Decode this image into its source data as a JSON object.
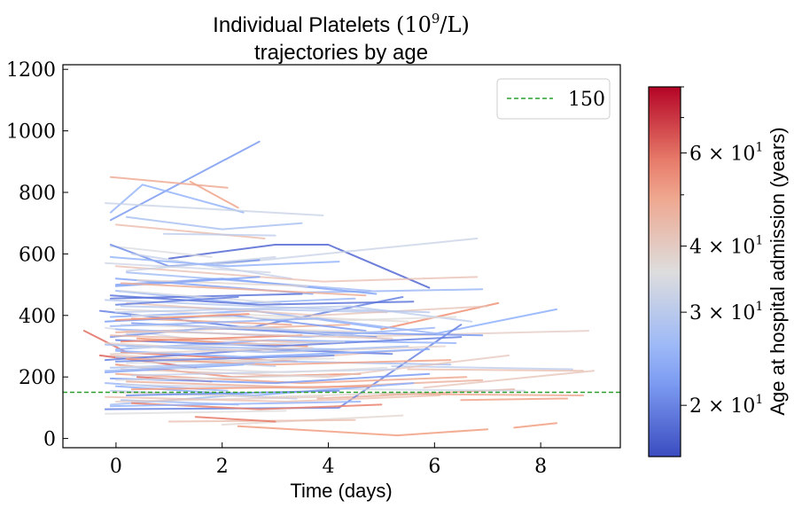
{
  "chart_data": {
    "type": "line",
    "title_line1": "Individual Platelets (10⁹/L)",
    "title_line2": "trajectories by age",
    "title_text": "Individual Platelets",
    "title_unit": "(10",
    "title_exp": "9",
    "title_unit_tail": "/L)",
    "xlabel": "Time (days)",
    "ylabel": "",
    "xlim": [
      -1.0,
      9.5
    ],
    "ylim": [
      -30,
      1215
    ],
    "x_ticks": [
      0,
      2,
      4,
      6,
      8
    ],
    "y_ticks": [
      0,
      200,
      400,
      600,
      800,
      1000,
      1200
    ],
    "reference_line": {
      "value": 150,
      "label": "150",
      "color": "#2ca02c",
      "style": "dashed"
    },
    "legend": {
      "placement": "top-right",
      "entries": [
        "150"
      ]
    },
    "colorbar": {
      "label": "Age at hospital admission (years)",
      "scale": "log",
      "range": [
        16,
        80
      ],
      "ticks": [
        {
          "value": 20,
          "mantissa": "2",
          "base": "10",
          "exp": "1"
        },
        {
          "value": 30,
          "mantissa": "3",
          "base": "10",
          "exp": "1"
        },
        {
          "value": 40,
          "mantissa": "4",
          "base": "10",
          "exp": "1"
        },
        {
          "value": 60,
          "mantissa": "6",
          "base": "10",
          "exp": "1"
        }
      ],
      "colormap": "coolwarm"
    },
    "series": [
      {
        "age": 22,
        "x": [
          -0.1,
          2.7
        ],
        "y": [
          710,
          965
        ]
      },
      {
        "age": 25,
        "x": [
          -0.1,
          0.5,
          2.4
        ],
        "y": [
          735,
          825,
          735
        ]
      },
      {
        "age": 32,
        "x": [
          -0.2,
          3.9
        ],
        "y": [
          765,
          725
        ]
      },
      {
        "age": 48,
        "x": [
          -0.1,
          2.1
        ],
        "y": [
          850,
          815
        ]
      },
      {
        "age": 50,
        "x": [
          1.4,
          2.3
        ],
        "y": [
          835,
          750
        ]
      },
      {
        "age": 45,
        "x": [
          0.0,
          2.8
        ],
        "y": [
          695,
          650
        ]
      },
      {
        "age": 28,
        "x": [
          0.2,
          2.0,
          3.5
        ],
        "y": [
          720,
          680,
          700
        ]
      },
      {
        "age": 30,
        "x": [
          0.9,
          3.0
        ],
        "y": [
          665,
          660
        ]
      },
      {
        "age": 18,
        "x": [
          1.0,
          3.0,
          4.0,
          5.9
        ],
        "y": [
          585,
          630,
          630,
          490
        ]
      },
      {
        "age": 32,
        "x": [
          1.9,
          6.8
        ],
        "y": [
          565,
          650
        ]
      },
      {
        "age": 26,
        "x": [
          3.6,
          6.9
        ],
        "y": [
          475,
          485
        ]
      },
      {
        "age": 40,
        "x": [
          4.2,
          8.9
        ],
        "y": [
          330,
          350
        ]
      },
      {
        "age": 24,
        "x": [
          6.0,
          8.3
        ],
        "y": [
          340,
          420
        ]
      },
      {
        "age": 55,
        "x": [
          5.0,
          7.2
        ],
        "y": [
          355,
          440
        ]
      },
      {
        "age": 44,
        "x": [
          5.5,
          8.8
        ],
        "y": [
          225,
          220
        ]
      },
      {
        "age": 30,
        "x": [
          5.2,
          8.6
        ],
        "y": [
          235,
          225
        ]
      },
      {
        "age": 42,
        "x": [
          5.8,
          9.0
        ],
        "y": [
          165,
          220
        ]
      },
      {
        "age": 48,
        "x": [
          5.0,
          8.8
        ],
        "y": [
          145,
          140
        ]
      },
      {
        "age": 50,
        "x": [
          6.5,
          8.5
        ],
        "y": [
          125,
          130
        ]
      },
      {
        "age": 52,
        "x": [
          7.5,
          8.3
        ],
        "y": [
          35,
          50
        ]
      },
      {
        "age": 46,
        "x": [
          3.8,
          7.5
        ],
        "y": [
          130,
          160
        ]
      },
      {
        "age": 52,
        "x": [
          2.3,
          5.3,
          7.0
        ],
        "y": [
          40,
          10,
          30
        ]
      },
      {
        "age": 38,
        "x": [
          2.0,
          5.4
        ],
        "y": [
          45,
          75
        ]
      },
      {
        "age": 44,
        "x": [
          1.0,
          4.5
        ],
        "y": [
          55,
          60
        ]
      },
      {
        "age": 58,
        "x": [
          1.5,
          3.0
        ],
        "y": [
          70,
          55
        ]
      },
      {
        "age": 36,
        "x": [
          -0.2,
          3.2
        ],
        "y": [
          80,
          90
        ]
      },
      {
        "age": 20,
        "x": [
          -0.2,
          4.2,
          6.5
        ],
        "y": [
          95,
          100,
          370
        ]
      },
      {
        "age": 28,
        "x": [
          -0.1,
          2.2
        ],
        "y": [
          110,
          140
        ]
      },
      {
        "age": 60,
        "x": [
          -0.6,
          0.2
        ],
        "y": [
          350,
          280
        ]
      },
      {
        "age": 62,
        "x": [
          -0.3,
          1.5
        ],
        "y": [
          270,
          230
        ]
      },
      {
        "age": 20,
        "x": [
          -0.3,
          2.5,
          5.4
        ],
        "y": [
          415,
          360,
          460
        ]
      },
      {
        "age": 23,
        "x": [
          0.0,
          3.7
        ],
        "y": [
          520,
          470
        ]
      },
      {
        "age": 27,
        "x": [
          0.2,
          4.8
        ],
        "y": [
          540,
          480
        ]
      },
      {
        "age": 35,
        "x": [
          -0.1,
          1.8
        ],
        "y": [
          625,
          590
        ]
      },
      {
        "age": 21,
        "x": [
          -0.1,
          1.0,
          2.7
        ],
        "y": [
          630,
          560,
          580
        ]
      },
      {
        "age": 31,
        "x": [
          0.3,
          3.3
        ],
        "y": [
          600,
          520
        ]
      },
      {
        "age": 33,
        "x": [
          -0.2,
          2.9
        ],
        "y": [
          570,
          540
        ]
      },
      {
        "age": 26,
        "x": [
          0.0,
          2.4,
          4.5
        ],
        "y": [
          480,
          440,
          455
        ]
      },
      {
        "age": 19,
        "x": [
          -0.1,
          3.5
        ],
        "y": [
          455,
          470
        ]
      },
      {
        "age": 29,
        "x": [
          0.1,
          5.1
        ],
        "y": [
          430,
          410
        ]
      },
      {
        "age": 24,
        "x": [
          -0.1,
          2.6,
          5.0
        ],
        "y": [
          395,
          415,
          360
        ]
      },
      {
        "age": 37,
        "x": [
          0.0,
          5.5
        ],
        "y": [
          420,
          380
        ]
      },
      {
        "age": 22,
        "x": [
          0.3,
          3.9,
          6.9
        ],
        "y": [
          375,
          345,
          335
        ]
      },
      {
        "age": 34,
        "x": [
          -0.2,
          2.0
        ],
        "y": [
          360,
          310
        ]
      },
      {
        "age": 47,
        "x": [
          0.0,
          4.4
        ],
        "y": [
          345,
          370
        ]
      },
      {
        "age": 53,
        "x": [
          0.4,
          3.6
        ],
        "y": [
          325,
          300
        ]
      },
      {
        "age": 21,
        "x": [
          -0.1,
          1.8,
          4.9
        ],
        "y": [
          330,
          360,
          330
        ]
      },
      {
        "age": 27,
        "x": [
          0.2,
          4.3
        ],
        "y": [
          300,
          290
        ]
      },
      {
        "age": 39,
        "x": [
          -0.2,
          3.1,
          6.2
        ],
        "y": [
          310,
          280,
          300
        ]
      },
      {
        "age": 25,
        "x": [
          0.0,
          2.9,
          6.4
        ],
        "y": [
          290,
          320,
          310
        ]
      },
      {
        "age": 58,
        "x": [
          0.1,
          3.4
        ],
        "y": [
          280,
          250
        ]
      },
      {
        "age": 43,
        "x": [
          -0.1,
          2.5,
          5.7
        ],
        "y": [
          270,
          250,
          290
        ]
      },
      {
        "age": 30,
        "x": [
          0.0,
          3.0
        ],
        "y": [
          265,
          235
        ]
      },
      {
        "age": 20,
        "x": [
          -0.2,
          2.8,
          5.2
        ],
        "y": [
          255,
          290,
          275
        ]
      },
      {
        "age": 36,
        "x": [
          0.2,
          4.1
        ],
        "y": [
          245,
          260
        ]
      },
      {
        "age": 55,
        "x": [
          0.0,
          2.2,
          4.6
        ],
        "y": [
          240,
          200,
          210
        ]
      },
      {
        "age": 28,
        "x": [
          -0.1,
          3.3,
          6.3
        ],
        "y": [
          230,
          250,
          240
        ]
      },
      {
        "age": 41,
        "x": [
          0.1,
          4.0,
          7.4
        ],
        "y": [
          225,
          200,
          270
        ]
      },
      {
        "age": 23,
        "x": [
          -0.2,
          2.4
        ],
        "y": [
          215,
          240
        ]
      },
      {
        "age": 49,
        "x": [
          0.0,
          3.5,
          6.6
        ],
        "y": [
          210,
          180,
          200
        ]
      },
      {
        "age": 31,
        "x": [
          0.3,
          5.3
        ],
        "y": [
          205,
          225
        ]
      },
      {
        "age": 60,
        "x": [
          0.4,
          1.8
        ],
        "y": [
          200,
          185
        ]
      },
      {
        "age": 22,
        "x": [
          -0.1,
          3.0,
          5.9
        ],
        "y": [
          195,
          180,
          210
        ]
      },
      {
        "age": 35,
        "x": [
          0.0,
          4.0
        ],
        "y": [
          190,
          205
        ]
      },
      {
        "age": 46,
        "x": [
          0.2,
          3.7,
          6.9
        ],
        "y": [
          185,
          165,
          190
        ]
      },
      {
        "age": 26,
        "x": [
          -0.2,
          2.1
        ],
        "y": [
          180,
          155
        ]
      },
      {
        "age": 33,
        "x": [
          0.1,
          4.5,
          7.7
        ],
        "y": [
          175,
          160,
          155
        ]
      },
      {
        "age": 24,
        "x": [
          0.0,
          2.6,
          5.6
        ],
        "y": [
          170,
          140,
          180
        ]
      },
      {
        "age": 52,
        "x": [
          0.3,
          4.8
        ],
        "y": [
          160,
          170
        ]
      },
      {
        "age": 29,
        "x": [
          -0.1,
          3.4
        ],
        "y": [
          155,
          130
        ]
      },
      {
        "age": 38,
        "x": [
          0.0,
          2.9,
          5.8
        ],
        "y": [
          150,
          135,
          150
        ]
      },
      {
        "age": 21,
        "x": [
          0.2,
          4.2
        ],
        "y": [
          140,
          155
        ]
      },
      {
        "age": 44,
        "x": [
          -0.2,
          3.2,
          6.1
        ],
        "y": [
          135,
          120,
          140
        ]
      },
      {
        "age": 27,
        "x": [
          0.1,
          2.3
        ],
        "y": [
          125,
          110
        ]
      },
      {
        "age": 40,
        "x": [
          0.0,
          3.9
        ],
        "y": [
          120,
          135
        ]
      },
      {
        "age": 57,
        "x": [
          0.3,
          2.7,
          5.0
        ],
        "y": [
          115,
          95,
          110
        ]
      },
      {
        "age": 25,
        "x": [
          -0.1,
          4.6
        ],
        "y": [
          105,
          120
        ]
      },
      {
        "age": 34,
        "x": [
          0.1,
          3.1
        ],
        "y": [
          480,
          440
        ]
      },
      {
        "age": 23,
        "x": [
          0.0,
          2.0,
          4.9
        ],
        "y": [
          500,
          520,
          470
        ]
      },
      {
        "age": 42,
        "x": [
          0.2,
          3.8,
          7.0
        ],
        "y": [
          440,
          400,
          430
        ]
      },
      {
        "age": 19,
        "x": [
          -0.1,
          2.7,
          5.6
        ],
        "y": [
          465,
          435,
          445
        ]
      },
      {
        "age": 30,
        "x": [
          0.0,
          4.4,
          6.7
        ],
        "y": [
          410,
          430,
          380
        ]
      },
      {
        "age": 48,
        "x": [
          0.3,
          3.3
        ],
        "y": [
          390,
          370
        ]
      },
      {
        "age": 22,
        "x": [
          -0.2,
          2.2,
          4.7
        ],
        "y": [
          380,
          400,
          350
        ]
      },
      {
        "age": 37,
        "x": [
          0.1,
          5.0
        ],
        "y": [
          370,
          345
        ]
      },
      {
        "age": 26,
        "x": [
          0.0,
          3.6,
          6.0
        ],
        "y": [
          355,
          330,
          360
        ]
      },
      {
        "age": 31,
        "x": [
          0.2,
          2.5,
          5.3
        ],
        "y": [
          340,
          365,
          320
        ]
      },
      {
        "age": 45,
        "x": [
          -0.1,
          4.0
        ],
        "y": [
          335,
          310
        ]
      },
      {
        "age": 20,
        "x": [
          0.0,
          3.0,
          6.5
        ],
        "y": [
          320,
          300,
          330
        ]
      },
      {
        "age": 56,
        "x": [
          0.1,
          3.5
        ],
        "y": [
          315,
          335
        ]
      },
      {
        "age": 28,
        "x": [
          -0.2,
          2.8,
          5.5
        ],
        "y": [
          305,
          280,
          300
        ]
      },
      {
        "age": 33,
        "x": [
          0.3,
          4.3
        ],
        "y": [
          295,
          315
        ]
      },
      {
        "age": 24,
        "x": [
          0.0,
          2.4,
          5.9
        ],
        "y": [
          285,
          265,
          290
        ]
      },
      {
        "age": 39,
        "x": [
          -0.1,
          3.7
        ],
        "y": [
          275,
          295
        ]
      },
      {
        "age": 50,
        "x": [
          0.2,
          2.9,
          6.3
        ],
        "y": [
          260,
          240,
          255
        ]
      },
      {
        "age": 21,
        "x": [
          0.0,
          4.1
        ],
        "y": [
          250,
          270
        ]
      },
      {
        "age": 35,
        "x": [
          0.1,
          3.2,
          5.1
        ],
        "y": [
          235,
          215,
          230
        ]
      },
      {
        "age": 27,
        "x": [
          -0.2,
          2.6
        ],
        "y": [
          220,
          245
        ]
      },
      {
        "age": 43,
        "x": [
          0.0,
          3.9,
          6.8
        ],
        "y": [
          560,
          510,
          525
        ]
      },
      {
        "age": 32,
        "x": [
          0.2,
          3.0
        ],
        "y": [
          545,
          590
        ]
      },
      {
        "age": 25,
        "x": [
          -0.1,
          2.1,
          4.2
        ],
        "y": [
          590,
          560,
          575
        ]
      },
      {
        "age": 38,
        "x": [
          0.4,
          3.6
        ],
        "y": [
          515,
          495
        ]
      },
      {
        "age": 23,
        "x": [
          0.0,
          2.7
        ],
        "y": [
          495,
          525
        ]
      },
      {
        "age": 47,
        "x": [
          0.1,
          4.7
        ],
        "y": [
          505,
          465
        ]
      },
      {
        "age": 29,
        "x": [
          -0.2,
          3.3,
          5.9
        ],
        "y": [
          450,
          425,
          410
        ]
      },
      {
        "age": 20,
        "x": [
          0.0,
          2.3
        ],
        "y": [
          435,
          460
        ]
      },
      {
        "age": 36,
        "x": [
          0.3,
          4.5,
          6.4
        ],
        "y": [
          400,
          385,
          395
        ]
      },
      {
        "age": 54,
        "x": [
          0.0,
          2.5
        ],
        "y": [
          385,
          405
        ]
      },
      {
        "age": 26,
        "x": [
          -0.1,
          3.8,
          6.1
        ],
        "y": [
          365,
          390,
          340
        ]
      },
      {
        "age": 41,
        "x": [
          0.2,
          5.2
        ],
        "y": [
          350,
          325
        ]
      }
    ]
  }
}
